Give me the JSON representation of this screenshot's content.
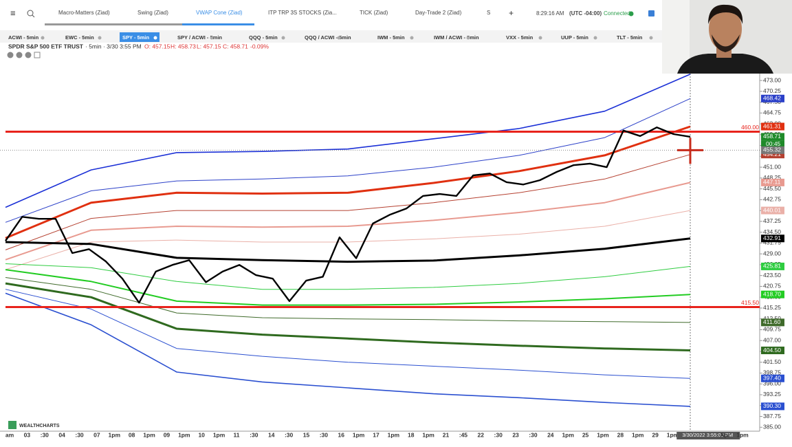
{
  "top_tabs": [
    "Macro-Matters (Ziad)",
    "Swing (Ziad)",
    "VWAP Cone (Ziad)",
    "ITP TRP 3S STOCKS (Zia...",
    "TICK (Ziad)",
    "Day-Trade 2 (Ziad)",
    "S"
  ],
  "active_tab": 2,
  "clock": "8:29:16 AM",
  "timezone": "(UTC -04:00)",
  "status": "Connected",
  "symbol_tabs": [
    "ACWI - 5min",
    "EWC - 5min",
    "SPY - 5min",
    "SPY / ACWI - 5min",
    "QQQ - 5min",
    "QQQ / ACWI - 5min",
    "IWM - 5min",
    "IWM / ACWI - 5min",
    "VXX - 5min",
    "UUP - 5min",
    "TLT - 5min"
  ],
  "active_symbol": 2,
  "info": {
    "name": "SPDR S&P 500 ETF TRUST",
    "interval": "· 5min · 3/30 3:55 PM",
    "o": "O: 457.15",
    "h": "H: 458.73",
    "l": "L: 457.15",
    "c": "C: 458.71",
    "change": "-0.09%"
  },
  "logo": "WEALTHCHARTS",
  "chart": {
    "type": "line",
    "ylim": [
      384,
      474.75
    ],
    "yticks": [
      {
        "value": 385,
        "label": "385.00"
      },
      387.75,
      {
        "value": 390.5,
        "label": "390.50"
      },
      393.25,
      {
        "value": 396,
        "label": "396.00"
      },
      398.75,
      {
        "value": 401.5,
        "label": "401.50"
      },
      404.25,
      {
        "value": 407,
        "label": "407.00"
      },
      409.75,
      {
        "value": 412.5,
        "label": "412.50"
      },
      415.25,
      {
        "value": 418,
        "label": "418.00"
      },
      420.75,
      {
        "value": 423.5,
        "label": "423.50"
      },
      426.25,
      {
        "value": 429,
        "label": "429.00"
      },
      431.75,
      {
        "value": 434.5,
        "label": "434.50"
      },
      437.25,
      {
        "value": 440,
        "label": "440.00"
      },
      442.75,
      {
        "value": 445.5,
        "label": "445.50"
      },
      448.25,
      {
        "value": 451,
        "label": "451.00"
      },
      453.75,
      {
        "value": 456.5,
        "label": "456.50"
      },
      459.25,
      {
        "value": 462,
        "label": "462.00"
      },
      464.75,
      {
        "value": 467.5,
        "label": "467.50"
      },
      470.25,
      {
        "value": 473,
        "label": "473.00"
      }
    ],
    "xlabels": [
      "am",
      "03",
      ":30",
      "04",
      ":30",
      "07",
      "1pm",
      "08",
      "1pm",
      "09",
      "1pm",
      "10",
      "1pm",
      "11",
      ":30",
      "14",
      ":30",
      "15",
      ":30",
      "16",
      "1pm",
      "17",
      "1pm",
      "18",
      "1pm",
      "21",
      ":45",
      "22",
      ":30",
      "23",
      ":30",
      "24",
      "1pm",
      "25",
      "1pm",
      "28",
      "1pm",
      "29",
      "1pm",
      "3",
      "3/30/2022 3:55:00 PM",
      "Apr",
      "1pm"
    ],
    "active_xlabel": 40,
    "levels": [
      {
        "value": 460,
        "label": "460.00",
        "color": "#e8231c"
      },
      {
        "value": 415.5,
        "label": "415.50",
        "color": "#e8231c"
      }
    ],
    "bands": [
      {
        "color": "#1a2fd6",
        "width": 1.6,
        "values": [
          440.8,
          450.3,
          454.7,
          455.0,
          455.6,
          458.2,
          460.8,
          465.2,
          474.6
        ]
      },
      {
        "color": "#2a3fc8",
        "width": 1,
        "values": [
          437,
          445,
          447.5,
          448,
          448.8,
          451,
          454,
          458.5,
          468.42
        ],
        "label": "468.42"
      },
      {
        "color": "#e03010",
        "width": 3,
        "values": [
          433,
          442,
          444.5,
          444.3,
          444.5,
          447,
          450,
          454,
          461.31
        ],
        "label": "461.31"
      },
      {
        "color": "#b54030",
        "width": 1,
        "values": [
          430,
          438,
          440,
          440,
          440,
          442,
          444.5,
          448,
          454.21
        ],
        "label": "454.21"
      },
      {
        "color": "#e89a90",
        "width": 2,
        "values": [
          427.5,
          435,
          436,
          435.8,
          436,
          437.5,
          439.5,
          442,
          447.11
        ],
        "label": "447.11"
      },
      {
        "color": "#eab0a8",
        "width": 1,
        "values": [
          425,
          432,
          432.5,
          432,
          432,
          432.8,
          434,
          436,
          440.01
        ],
        "label": "440.01"
      },
      {
        "color": "#000000",
        "width": 3,
        "values": [
          432,
          431.5,
          428,
          427.4,
          427,
          427.3,
          428.6,
          430.3,
          432.91
        ],
        "label": "432.91"
      },
      {
        "color": "#2ecc40",
        "width": 1,
        "values": [
          426.5,
          425.5,
          422,
          420,
          420,
          420.5,
          421.5,
          423.2,
          425.81
        ],
        "label": "425.81"
      },
      {
        "color": "#22cc22",
        "width": 2,
        "values": [
          425,
          422,
          417,
          416,
          416,
          416.2,
          416.8,
          417.6,
          418.7
        ],
        "label": "418.70"
      },
      {
        "color": "#3f6a2a",
        "width": 1,
        "values": [
          423,
          420,
          414,
          412.8,
          412.5,
          412.3,
          412,
          411.8,
          411.6
        ],
        "label": "411.60"
      },
      {
        "color": "#2f6a1f",
        "width": 3,
        "values": [
          421.5,
          418,
          410,
          408.5,
          407.5,
          406.5,
          405.7,
          405,
          404.5
        ],
        "label": "404.50"
      },
      {
        "color": "#2a4fd0",
        "width": 1,
        "values": [
          420,
          415,
          405,
          403,
          401.5,
          400.5,
          399.5,
          398.3,
          397.4
        ],
        "label": "397.40"
      },
      {
        "color": "#2a4fd0",
        "width": 1.6,
        "values": [
          419,
          411,
          399,
          396.5,
          395,
          393.5,
          392.5,
          391.3,
          390.3
        ],
        "label": "390.30"
      }
    ],
    "price": {
      "color": "#000000",
      "values": [
        432.3,
        438.4,
        437.9,
        437.9,
        429.2,
        430.2,
        427.1,
        422.7,
        416.6,
        424.5,
        426.2,
        427.4,
        421.8,
        424.5,
        426.2,
        423.6,
        422.7,
        417.0,
        422.2,
        423.2,
        433.2,
        427.9,
        436.7,
        438.9,
        440.5,
        443.7,
        444.2,
        443.7,
        448.9,
        449.4,
        447.2,
        446.6,
        447.7,
        449.8,
        451.5,
        451.9,
        451.0,
        460.3,
        458.9,
        461.1,
        459.4,
        458.71
      ],
      "label": "458.71",
      "badge_color": "#1f8a2a"
    },
    "countdown": "00:45",
    "cursor": {
      "value": 455.32,
      "label": "455.32"
    }
  }
}
